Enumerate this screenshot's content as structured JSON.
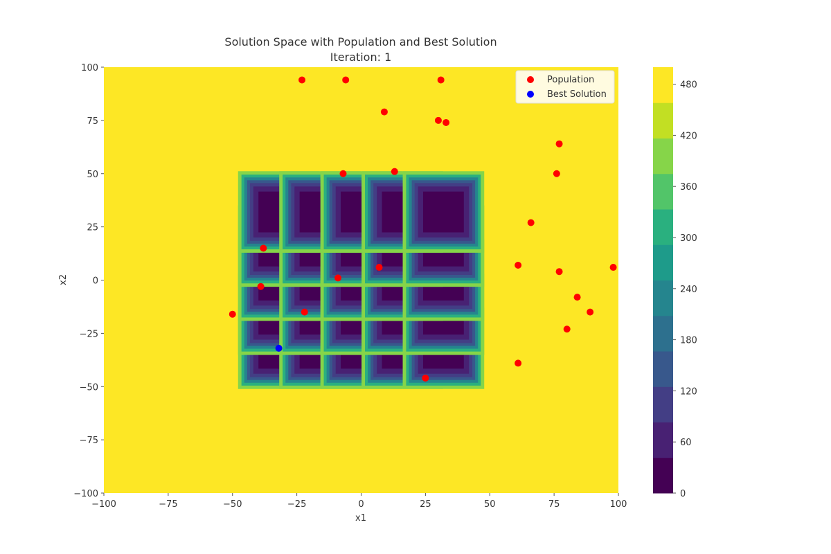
{
  "chart_data": {
    "type": "scatter",
    "title": "Solution Space with Population and Best Solution",
    "subtitle": "Iteration: 1",
    "xlabel": "x1",
    "ylabel": "x2",
    "xlim": [
      -100,
      100
    ],
    "ylim": [
      -100,
      100
    ],
    "x_ticks": [
      -100,
      -75,
      -50,
      -25,
      0,
      25,
      50,
      75,
      100
    ],
    "x_tick_labels": [
      "−100",
      "−75",
      "−50",
      "−25",
      "0",
      "25",
      "50",
      "75",
      "100"
    ],
    "y_ticks": [
      -100,
      -75,
      -50,
      -25,
      0,
      25,
      50,
      75,
      100
    ],
    "y_tick_labels": [
      "−100",
      "−75",
      "−50",
      "−25",
      "0",
      "25",
      "50",
      "75",
      "100"
    ],
    "grid": false,
    "legend_position": "top-right",
    "background_surface": {
      "type": "contour",
      "colormap": "viridis",
      "level_range": [
        0,
        500
      ],
      "well_centers_x": [
        -32,
        -16,
        0,
        16,
        32
      ],
      "well_centers_y": [
        -32,
        -16,
        0,
        16,
        32
      ],
      "well_min_value": 0,
      "plateau_value": 500
    },
    "colorbar": {
      "ticks": [
        0,
        60,
        120,
        180,
        240,
        300,
        360,
        420,
        480
      ],
      "tick_labels": [
        "0",
        "60",
        "120",
        "180",
        "240",
        "300",
        "360",
        "420",
        "480"
      ],
      "range": [
        0,
        500
      ],
      "colors": [
        "#440154",
        "#482173",
        "#433e85",
        "#38588c",
        "#2d708e",
        "#25858e",
        "#1e9b8a",
        "#2ab07f",
        "#52c569",
        "#86d549",
        "#c2df23",
        "#fde725"
      ]
    },
    "series": [
      {
        "name": "Population",
        "color": "#ff0000",
        "points": [
          {
            "x": -23,
            "y": 94
          },
          {
            "x": -6,
            "y": 94
          },
          {
            "x": 31,
            "y": 94
          },
          {
            "x": 9,
            "y": 79
          },
          {
            "x": 30,
            "y": 75
          },
          {
            "x": 33,
            "y": 74
          },
          {
            "x": 77,
            "y": 64
          },
          {
            "x": -7,
            "y": 50
          },
          {
            "x": 13,
            "y": 51
          },
          {
            "x": 76,
            "y": 50
          },
          {
            "x": 66,
            "y": 27
          },
          {
            "x": -38,
            "y": 15
          },
          {
            "x": 7,
            "y": 6
          },
          {
            "x": 61,
            "y": 7
          },
          {
            "x": 77,
            "y": 4
          },
          {
            "x": 98,
            "y": 6
          },
          {
            "x": -9,
            "y": 1
          },
          {
            "x": -39,
            "y": -3
          },
          {
            "x": 84,
            "y": -8
          },
          {
            "x": -50,
            "y": -16
          },
          {
            "x": -22,
            "y": -15
          },
          {
            "x": 89,
            "y": -15
          },
          {
            "x": 80,
            "y": -23
          },
          {
            "x": 61,
            "y": -39
          },
          {
            "x": 25,
            "y": -46
          }
        ]
      },
      {
        "name": "Best Solution",
        "color": "#0000ff",
        "points": [
          {
            "x": -32,
            "y": -32
          }
        ]
      }
    ]
  }
}
